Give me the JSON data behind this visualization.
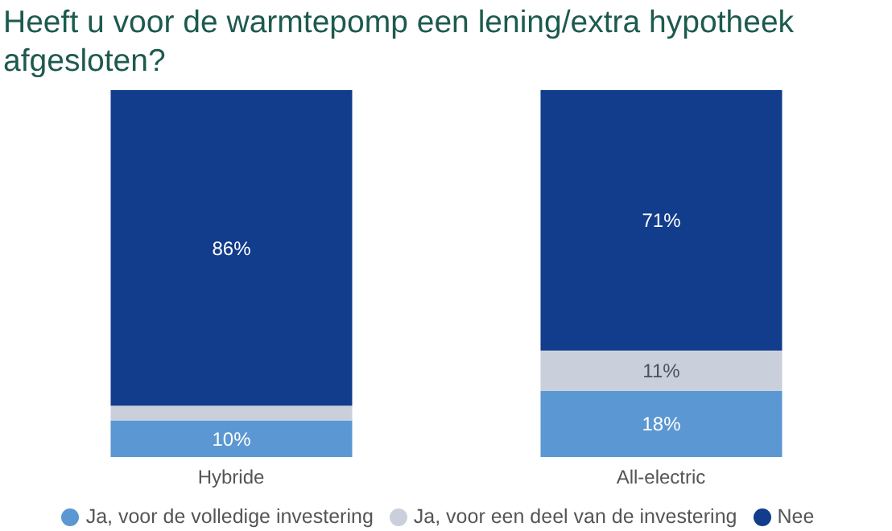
{
  "chart_data": {
    "type": "bar",
    "title": "Heeft u voor de warmtepomp een lening/extra hypotheek afgesloten?",
    "categories": [
      "Hybride",
      "All-electric"
    ],
    "stacked": true,
    "ylim": [
      0,
      100
    ],
    "tick_labels": "x",
    "legend": "bottom",
    "series": [
      {
        "name": "Ja, voor de volledige investering",
        "color": "#5b97d2",
        "values": [
          10,
          18
        ],
        "value_labels": [
          "10%",
          "18%"
        ]
      },
      {
        "name": "Ja, voor een deel van de investering",
        "color": "#c9d0dc",
        "values": [
          4,
          11
        ],
        "value_labels": [
          null,
          "11%"
        ]
      },
      {
        "name": "Nee",
        "color": "#123c8c",
        "values": [
          86,
          71
        ],
        "value_labels": [
          "86%",
          "71%"
        ]
      }
    ]
  }
}
